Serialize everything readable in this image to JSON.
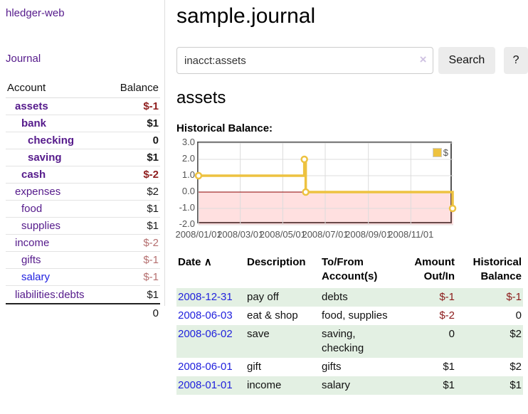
{
  "app": {
    "title": "hledger-web"
  },
  "nav": {
    "journal_label": "Journal"
  },
  "sidebar": {
    "header": {
      "account": "Account",
      "balance": "Balance"
    },
    "rows": [
      {
        "name": "assets",
        "depth": 1,
        "matched": true,
        "balance": "$-1",
        "negative": true,
        "blue": false
      },
      {
        "name": "bank",
        "depth": 2,
        "matched": true,
        "balance": "$1",
        "negative": false,
        "blue": false
      },
      {
        "name": "checking",
        "depth": 3,
        "matched": true,
        "balance": "0",
        "negative": false,
        "blue": false
      },
      {
        "name": "saving",
        "depth": 3,
        "matched": true,
        "balance": "$1",
        "negative": false,
        "blue": false
      },
      {
        "name": "cash",
        "depth": 2,
        "matched": true,
        "balance": "$-2",
        "negative": true,
        "blue": false
      },
      {
        "name": "expenses",
        "depth": 1,
        "matched": false,
        "balance": "$2",
        "negative": false,
        "blue": false
      },
      {
        "name": "food",
        "depth": 2,
        "matched": false,
        "balance": "$1",
        "negative": false,
        "blue": false
      },
      {
        "name": "supplies",
        "depth": 2,
        "matched": false,
        "balance": "$1",
        "negative": false,
        "blue": false
      },
      {
        "name": "income",
        "depth": 1,
        "matched": false,
        "balance": "$-2",
        "negative": true,
        "blue": false
      },
      {
        "name": "gifts",
        "depth": 2,
        "matched": false,
        "balance": "$-1",
        "negative": true,
        "blue": false
      },
      {
        "name": "salary",
        "depth": 2,
        "matched": false,
        "balance": "$-1",
        "negative": true,
        "blue": true
      },
      {
        "name": "liabilities:debts",
        "depth": 1,
        "matched": false,
        "balance": "$1",
        "negative": false,
        "blue": false
      }
    ],
    "total": "0"
  },
  "header": {
    "title": "sample.journal"
  },
  "search": {
    "value": "inacct:assets",
    "clear_icon": "×",
    "button_label": "Search",
    "help_label": "?"
  },
  "account_page": {
    "heading": "assets",
    "chart_label": "Historical Balance:"
  },
  "chart_data": {
    "type": "line",
    "style": "step",
    "title": "Historical Balance",
    "legend_label": "$",
    "legend_position": "top-right",
    "grid": true,
    "ylim": [
      -2,
      3
    ],
    "y_ticks": [
      "3.0",
      "2.0",
      "1.0",
      "0.0",
      "-1.0",
      "-2.0"
    ],
    "y_tick_values": [
      3,
      2,
      1,
      0,
      -1,
      -2
    ],
    "x_ticks": [
      "2008/01/01",
      "2008/03/01",
      "2008/05/01",
      "2008/07/01",
      "2008/09/01",
      "2008/11/01"
    ],
    "x_tick_days": [
      0,
      60,
      121,
      182,
      244,
      305
    ],
    "x_range_days": 366,
    "series": [
      {
        "name": "$",
        "points": [
          {
            "date": "2008-01-01",
            "day": 0,
            "value": 1
          },
          {
            "date": "2008-06-01",
            "day": 152,
            "value": 2
          },
          {
            "date": "2008-06-03",
            "day": 154,
            "value": 0
          },
          {
            "date": "2008-12-31",
            "day": 365,
            "value": -1
          }
        ]
      }
    ],
    "colors": {
      "line": "#edc240",
      "marker_fill": "#ffffff",
      "grid": "#dcdcdc",
      "plot_border": "#545454",
      "zero_line": "#8b0000",
      "negative_region_fill": "rgba(255,0,0,0.12)"
    }
  },
  "register": {
    "headers": {
      "date": "Date",
      "sort_icon": "∧",
      "description": "Description",
      "accounts": "To/From Account(s)",
      "amount": "Amount Out/In",
      "balance": "Historical Balance"
    },
    "rows": [
      {
        "date": "2008-12-31",
        "description": "pay off",
        "accounts": "debts",
        "amount": "$-1",
        "amount_negative": true,
        "balance": "$-1",
        "balance_negative": true,
        "highlight": true
      },
      {
        "date": "2008-06-03",
        "description": "eat & shop",
        "accounts": "food, supplies",
        "amount": "$-2",
        "amount_negative": true,
        "balance": "0",
        "balance_negative": false,
        "highlight": false
      },
      {
        "date": "2008-06-02",
        "description": "save",
        "accounts": "saving, checking",
        "amount": "0",
        "amount_negative": false,
        "balance": "$2",
        "balance_negative": false,
        "highlight": true
      },
      {
        "date": "2008-06-01",
        "description": "gift",
        "accounts": "gifts",
        "amount": "$1",
        "amount_negative": false,
        "balance": "$2",
        "balance_negative": false,
        "highlight": false
      },
      {
        "date": "2008-01-01",
        "description": "income",
        "accounts": "salary",
        "amount": "$1",
        "amount_negative": false,
        "balance": "$1",
        "balance_negative": false,
        "highlight": true
      }
    ]
  },
  "colors": {
    "link_purple": "#551a8b",
    "link_blue": "#2222dd",
    "negative_strong": "#8f1d1d",
    "negative_muted": "#b56f6f",
    "register_negative": "#8b1a1a",
    "row_highlight_green": "#e3f0e3"
  }
}
